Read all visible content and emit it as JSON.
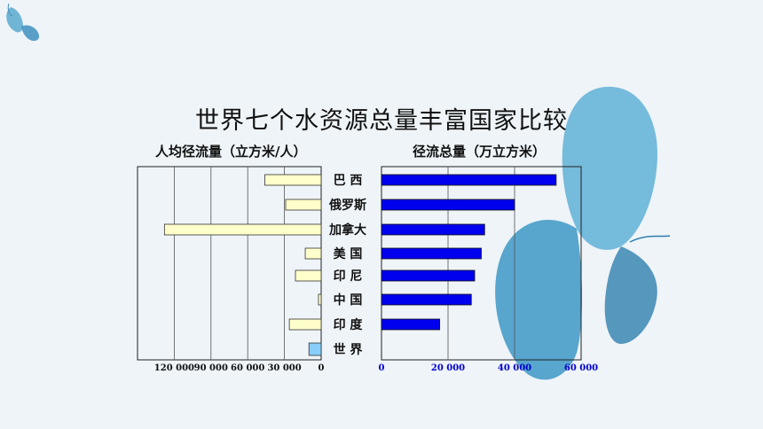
{
  "title": "世界七个水资源总量丰富国家比较",
  "colors": {
    "per_capita_bar": "#ffffcc",
    "per_capita_world": "#87cefa",
    "total_bar": "#0000ee",
    "tick_left": "#111111",
    "tick_right": "#0000cc"
  },
  "chart_data": [
    {
      "type": "bar",
      "orientation": "horizontal",
      "direction": "right-to-left",
      "title": "人均径流量（立方米/人）",
      "categories": [
        "巴 西",
        "俄罗斯",
        "加拿大",
        "美 国",
        "印 尼",
        "中 国",
        "印 度",
        "世 界"
      ],
      "values": [
        46000,
        29000,
        128000,
        13000,
        21000,
        2200,
        26000,
        10000
      ],
      "xlim": [
        0,
        150000
      ],
      "ticks": [
        0,
        30000,
        60000,
        90000,
        120000
      ],
      "tick_labels": [
        "0",
        "30 000",
        "60 000",
        "90 000",
        "120 000"
      ],
      "grid": true
    },
    {
      "type": "bar",
      "orientation": "horizontal",
      "title": "径流总量（万立方米）",
      "categories": [
        "巴 西",
        "俄罗斯",
        "加拿大",
        "美 国",
        "印 尼",
        "中 国",
        "印 度"
      ],
      "values": [
        52500,
        40000,
        31000,
        30000,
        28000,
        27000,
        17500
      ],
      "xlim": [
        0,
        60000
      ],
      "ticks": [
        0,
        20000,
        40000,
        60000
      ],
      "tick_labels": [
        "0",
        "20 000",
        "40 000",
        "60 000"
      ],
      "grid": true
    }
  ]
}
